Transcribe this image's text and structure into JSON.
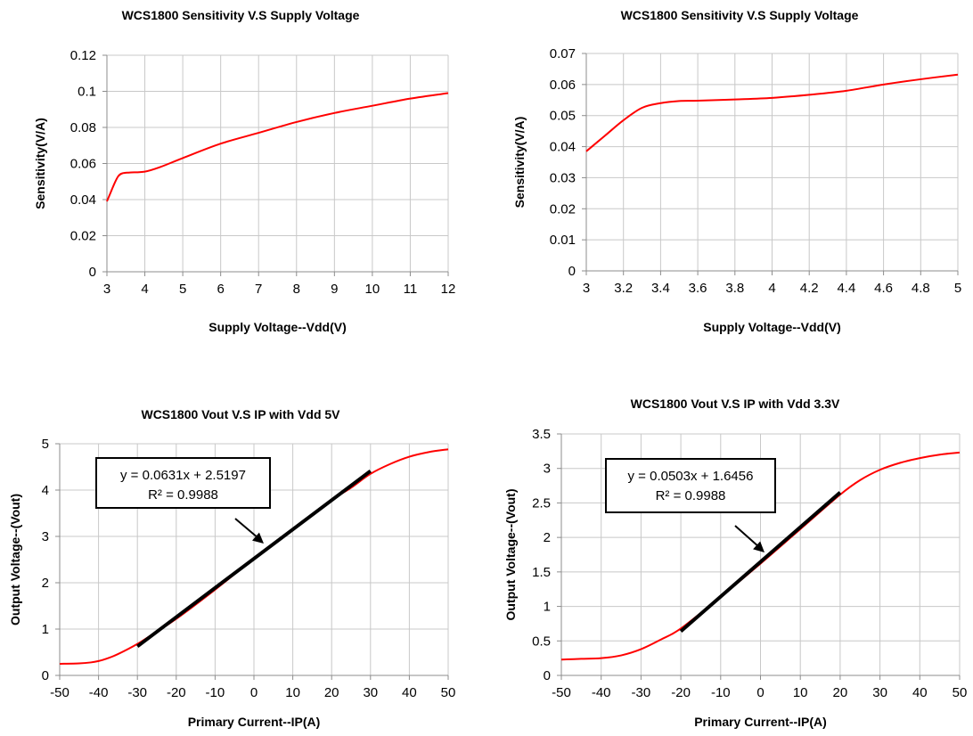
{
  "colors": {
    "series": "#ff0000",
    "trend": "#000000"
  },
  "chart_data": [
    {
      "type": "line",
      "title": "WCS1800 Sensitivity V.S Supply Voltage",
      "xlabel": "Supply Voltage--Vdd(V)",
      "ylabel": "Sensitivity(V/A)",
      "xlim": [
        3,
        12
      ],
      "ylim": [
        0,
        0.12
      ],
      "xticks": [
        3,
        4,
        5,
        6,
        7,
        8,
        9,
        10,
        11,
        12
      ],
      "xtick_labels": [
        "3",
        "4",
        "5",
        "6",
        "7",
        "8",
        "9",
        "10",
        "11",
        "12"
      ],
      "yticks": [
        0,
        0.02,
        0.04,
        0.06,
        0.08,
        0.1,
        0.12
      ],
      "ytick_labels": [
        "0",
        "0.02",
        "0.04",
        "0.06",
        "0.08",
        "0.1",
        "0.12"
      ],
      "grid": true,
      "series": [
        {
          "x": [
            3,
            3.1,
            3.2,
            3.3,
            3.4,
            3.6,
            4,
            4.4,
            5,
            6,
            7,
            8,
            9,
            10,
            11,
            12
          ],
          "y": [
            0.039,
            0.044,
            0.049,
            0.053,
            0.0545,
            0.055,
            0.0555,
            0.058,
            0.063,
            0.071,
            0.077,
            0.083,
            0.088,
            0.092,
            0.096,
            0.099
          ]
        }
      ]
    },
    {
      "type": "line",
      "title": "WCS1800 Sensitivity V.S Supply Voltage",
      "xlabel": "Supply Voltage--Vdd(V)",
      "ylabel": "Sensitivity(V/A)",
      "xlim": [
        3,
        5
      ],
      "ylim": [
        0,
        0.07
      ],
      "xticks": [
        3,
        3.2,
        3.4,
        3.6,
        3.8,
        4,
        4.2,
        4.4,
        4.6,
        4.8,
        5
      ],
      "xtick_labels": [
        "3",
        "3.2",
        "3.4",
        "3.6",
        "3.8",
        "4",
        "4.2",
        "4.4",
        "4.6",
        "4.8",
        "5"
      ],
      "yticks": [
        0,
        0.01,
        0.02,
        0.03,
        0.04,
        0.05,
        0.06,
        0.07
      ],
      "ytick_labels": [
        "0",
        "0.01",
        "0.02",
        "0.03",
        "0.04",
        "0.05",
        "0.06",
        "0.07"
      ],
      "grid": true,
      "series": [
        {
          "x": [
            3,
            3.1,
            3.2,
            3.3,
            3.4,
            3.5,
            3.6,
            3.8,
            4,
            4.2,
            4.4,
            4.6,
            4.8,
            5
          ],
          "y": [
            0.0385,
            0.0435,
            0.0485,
            0.0525,
            0.054,
            0.0547,
            0.0548,
            0.0552,
            0.0557,
            0.0567,
            0.058,
            0.06,
            0.0617,
            0.0632
          ]
        }
      ]
    },
    {
      "type": "line",
      "title": "WCS1800 Vout V.S IP with Vdd 5V",
      "xlabel": "Primary Current--IP(A)",
      "ylabel": "Output Voltage--(Vout)",
      "xlim": [
        -50,
        50
      ],
      "ylim": [
        0,
        5
      ],
      "xticks": [
        -50,
        -40,
        -30,
        -20,
        -10,
        0,
        10,
        20,
        30,
        40,
        50
      ],
      "xtick_labels": [
        "-50",
        "-40",
        "-30",
        "-20",
        "-10",
        "0",
        "10",
        "20",
        "30",
        "40",
        "50"
      ],
      "yticks": [
        0,
        1,
        2,
        3,
        4,
        5
      ],
      "ytick_labels": [
        "0",
        "1",
        "2",
        "3",
        "4",
        "5"
      ],
      "grid": true,
      "series": [
        {
          "x": [
            -50,
            -45,
            -42,
            -40,
            -38,
            -35,
            -30,
            -25,
            -20,
            -10,
            0,
            10,
            20,
            25,
            30,
            35,
            40,
            45,
            50
          ],
          "y": [
            0.25,
            0.26,
            0.28,
            0.31,
            0.36,
            0.46,
            0.68,
            0.95,
            1.22,
            1.85,
            2.52,
            3.15,
            3.78,
            4.05,
            4.35,
            4.56,
            4.72,
            4.82,
            4.88
          ]
        }
      ],
      "trendline": {
        "equation": "y = 0.0631x + 2.5197",
        "r2": "R² = 0.9988",
        "slope": 0.0631,
        "intercept": 2.5197,
        "x_range": [
          -30,
          30
        ]
      }
    },
    {
      "type": "line",
      "title": "WCS1800 Vout V.S IP with Vdd 3.3V",
      "xlabel": "Primary Current--IP(A)",
      "ylabel": "Output Voltage--(Vout)",
      "xlim": [
        -50,
        50
      ],
      "ylim": [
        0,
        3.5
      ],
      "xticks": [
        -50,
        -40,
        -30,
        -20,
        -10,
        0,
        10,
        20,
        30,
        40,
        50
      ],
      "xtick_labels": [
        "-50",
        "-40",
        "-30",
        "-20",
        "-10",
        "0",
        "10",
        "20",
        "30",
        "40",
        "50"
      ],
      "yticks": [
        0,
        0.5,
        1,
        1.5,
        2,
        2.5,
        3,
        3.5
      ],
      "ytick_labels": [
        "0",
        "0.5",
        "1",
        "1.5",
        "2",
        "2.5",
        "3",
        "3.5"
      ],
      "grid": true,
      "series": [
        {
          "x": [
            -50,
            -45,
            -40,
            -35,
            -30,
            -25,
            -20,
            -10,
            0,
            10,
            20,
            25,
            30,
            35,
            40,
            45,
            50
          ],
          "y": [
            0.23,
            0.24,
            0.25,
            0.29,
            0.38,
            0.52,
            0.68,
            1.14,
            1.62,
            2.12,
            2.62,
            2.83,
            2.98,
            3.08,
            3.15,
            3.2,
            3.23
          ]
        }
      ],
      "trendline": {
        "equation": "y = 0.0503x + 1.6456",
        "r2": "R² = 0.9988",
        "slope": 0.0503,
        "intercept": 1.6456,
        "x_range": [
          -20,
          20
        ]
      }
    }
  ]
}
